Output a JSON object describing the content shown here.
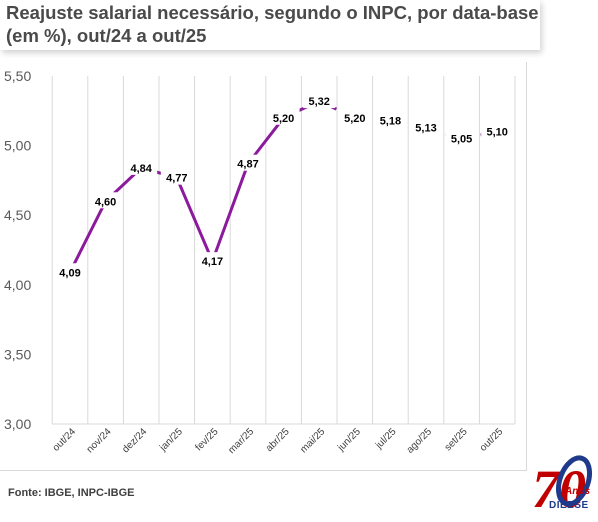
{
  "header": {
    "title": "Reajuste salarial necessário, segundo o INPC, por data-base (em %), out/24 a out/25"
  },
  "footer": {
    "source": "Fonte: IBGE, INPC-IBGE"
  },
  "logo": {
    "number": "70",
    "anos": "Anos",
    "name": "DIEESE"
  },
  "colors": {
    "line": "#8b1a9c",
    "grid": "#d9d9d9",
    "text": "#404040",
    "title": "#4a4a4a",
    "logo_red": "#c00000",
    "logo_blue": "#1f3a8a"
  },
  "chart_data": {
    "type": "line",
    "title": "Reajuste salarial necessário, segundo o INPC, por data-base (em %), out/24 a out/25",
    "categories": [
      "out/24",
      "nov/24",
      "dez/24",
      "jan/25",
      "fev/25",
      "mar/25",
      "abr/25",
      "mai/25",
      "jun/25",
      "jul/25",
      "ago/25",
      "set/25",
      "out/25"
    ],
    "series": [
      {
        "values": [
          4.09,
          4.6,
          4.84,
          4.77,
          4.17,
          4.87,
          5.2,
          5.32,
          5.2,
          5.18,
          5.13,
          5.05,
          5.1
        ],
        "labels": [
          "4,09",
          "4,60",
          "4,84",
          "4,77",
          "4,17",
          "4,87",
          "5,20",
          "5,32",
          "5,20",
          "5,18",
          "5,13",
          "5,05",
          "5,10"
        ],
        "dashed_from_index": 7
      }
    ],
    "ylim": [
      3.0,
      5.5
    ],
    "yticks": [
      3.0,
      3.5,
      4.0,
      4.5,
      5.0,
      5.5
    ],
    "ytick_labels": [
      "3,00",
      "3,50",
      "4,00",
      "4,50",
      "5,00",
      "5,50"
    ],
    "xlabel": "",
    "ylabel": "",
    "grid": "vertical"
  }
}
